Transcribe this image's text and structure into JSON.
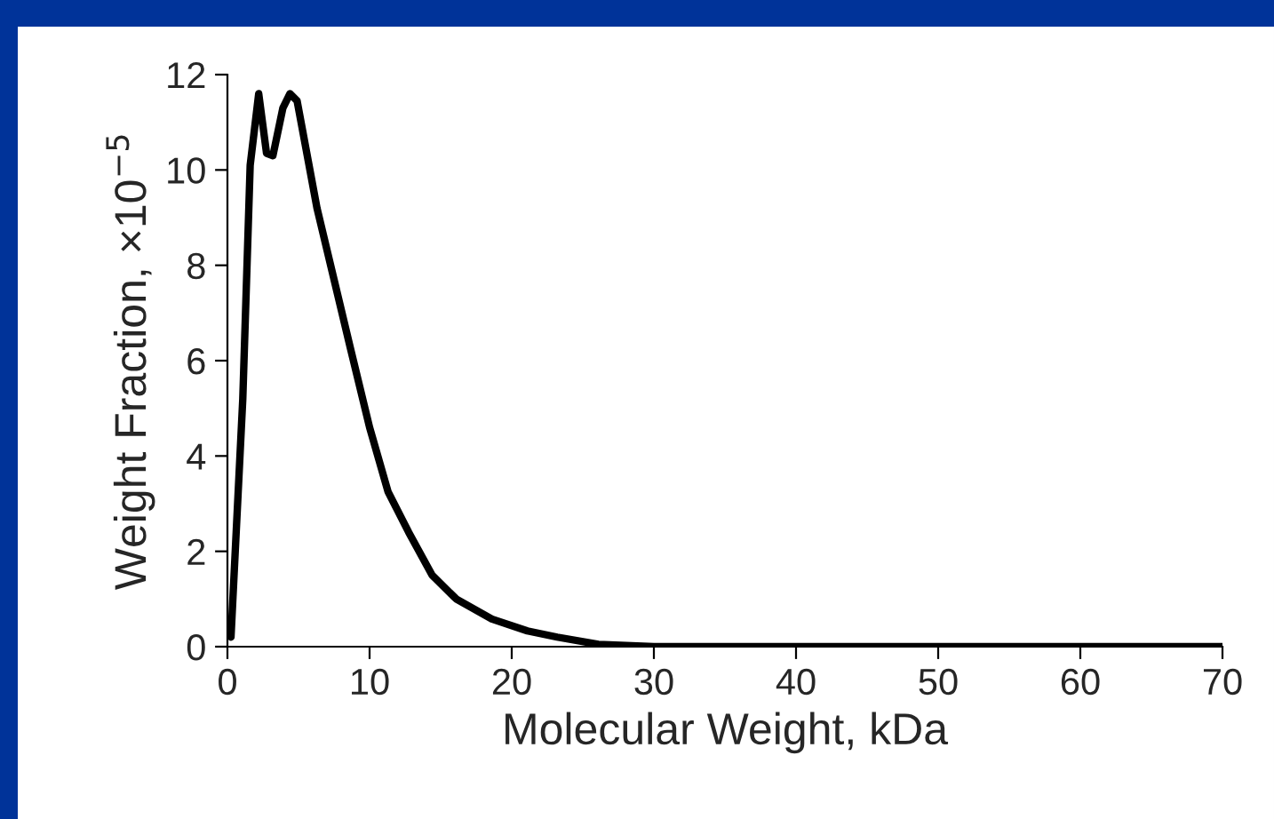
{
  "chart_data": {
    "type": "line",
    "xlabel": "Molecular Weight, kDa",
    "ylabel": "Weight Fraction, ×10$^{−5}$",
    "x": [
      0.25,
      1.08,
      1.6,
      2.2,
      2.75,
      3.2,
      3.9,
      4.4,
      4.9,
      6.3,
      7.5,
      8.7,
      10.0,
      11.3,
      12.75,
      14.4,
      16.1,
      18.6,
      21.1,
      23.2,
      26.1,
      30,
      40,
      50,
      60,
      70
    ],
    "series": [
      {
        "color": "#000000",
        "values": [
          0.2,
          5.2,
          10.1,
          11.6,
          10.35,
          10.3,
          11.3,
          11.6,
          11.45,
          9.2,
          7.7,
          6.2,
          4.6,
          3.25,
          2.4,
          1.5,
          1.0,
          0.58,
          0.33,
          0.2,
          0.05,
          0,
          0,
          0,
          0,
          0
        ]
      }
    ],
    "xlim": [
      0,
      70
    ],
    "xticks": [
      0,
      10,
      20,
      30,
      40,
      50,
      60,
      70
    ],
    "ylim": [
      0,
      12
    ],
    "yticks": [
      0,
      2,
      4,
      6,
      8,
      10,
      12
    ],
    "grid": false,
    "legend": false,
    "marker": "none",
    "line_style": "solid"
  }
}
